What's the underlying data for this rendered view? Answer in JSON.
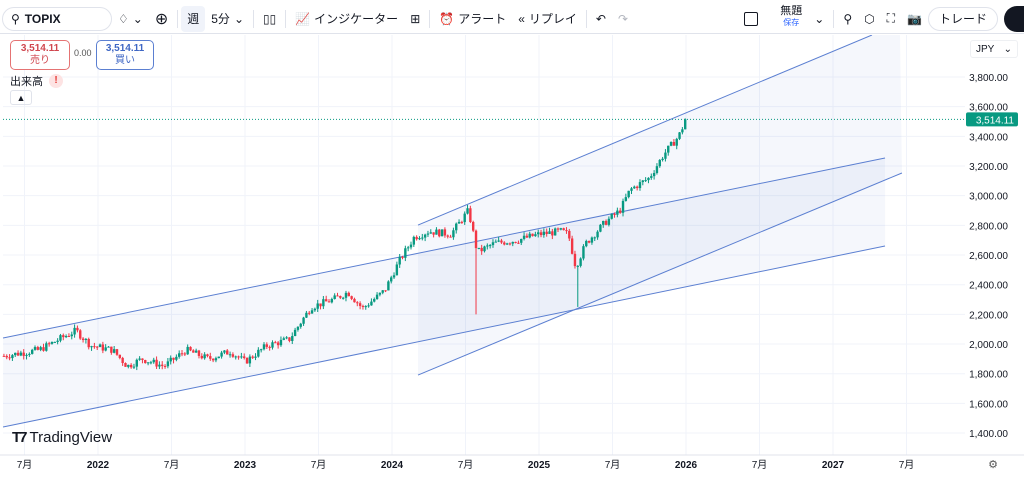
{
  "toolbar": {
    "symbol": "TOPIX",
    "interval_week": "週",
    "interval": "5分",
    "indicators": "インジケーター",
    "alert": "アラート",
    "replay": "リプレイ",
    "layout_name": "無題",
    "save": "保存",
    "trade": "トレード"
  },
  "quote": {
    "sell_price": "3,514.11",
    "sell_label": "売り",
    "spread": "0.00",
    "buy_price": "3,514.11",
    "buy_label": "買い",
    "volume_label": "出来高",
    "warning": "!"
  },
  "currency": "JPY",
  "brand": "TradingView",
  "current_price_label": "3,514.11",
  "colors": {
    "up": "#089981",
    "down": "#f23645",
    "drawing": "#5b7fd1",
    "price_tag": "#089981"
  },
  "chart_data": {
    "type": "candlestick",
    "yticks": [
      1400,
      1600,
      1800,
      2000,
      2200,
      2400,
      2600,
      2800,
      3000,
      3200,
      3400,
      3600,
      3800
    ],
    "ytick_labels": [
      "1,400.00",
      "1,600.00",
      "1,800.00",
      "2,000.00",
      "2,200.00",
      "2,400.00",
      "2,600.00",
      "2,800.00",
      "3,000.00",
      "3,200.00",
      "3,400.00",
      "3,600.00",
      "3,800.00"
    ],
    "xticks": [
      {
        "t": 2021.5,
        "label": "7月"
      },
      {
        "t": 2022,
        "label": "2022"
      },
      {
        "t": 2022.5,
        "label": "7月"
      },
      {
        "t": 2023,
        "label": "2023"
      },
      {
        "t": 2023.5,
        "label": "7月"
      },
      {
        "t": 2024,
        "label": "2024"
      },
      {
        "t": 2024.5,
        "label": "7月"
      },
      {
        "t": 2025,
        "label": "2025"
      },
      {
        "t": 2025.5,
        "label": "7月"
      },
      {
        "t": 2026,
        "label": "2026"
      },
      {
        "t": 2026.5,
        "label": "7月"
      },
      {
        "t": 2027,
        "label": "2027"
      },
      {
        "t": 2027.5,
        "label": "7月"
      }
    ],
    "xlim": [
      2021.35,
      2027.9
    ],
    "ylim": [
      1300,
      3950
    ],
    "keypoints": [
      [
        2021.36,
        1920
      ],
      [
        2021.6,
        1960
      ],
      [
        2021.75,
        2040
      ],
      [
        2021.85,
        2090
      ],
      [
        2021.95,
        1990
      ],
      [
        2022.1,
        1960
      ],
      [
        2022.2,
        1850
      ],
      [
        2022.3,
        1900
      ],
      [
        2022.45,
        1850
      ],
      [
        2022.6,
        1960
      ],
      [
        2022.75,
        1900
      ],
      [
        2022.9,
        1950
      ],
      [
        2023.0,
        1880
      ],
      [
        2023.15,
        1990
      ],
      [
        2023.3,
        2030
      ],
      [
        2023.45,
        2250
      ],
      [
        2023.6,
        2300
      ],
      [
        2023.7,
        2350
      ],
      [
        2023.8,
        2240
      ],
      [
        2023.95,
        2360
      ],
      [
        2024.05,
        2560
      ],
      [
        2024.15,
        2720
      ],
      [
        2024.25,
        2760
      ],
      [
        2024.4,
        2740
      ],
      [
        2024.52,
        2900
      ],
      [
        2024.58,
        2620
      ],
      [
        2024.7,
        2680
      ],
      [
        2024.85,
        2700
      ],
      [
        2025.0,
        2740
      ],
      [
        2025.15,
        2760
      ],
      [
        2025.2,
        2740
      ],
      [
        2025.25,
        2520
      ],
      [
        2025.32,
        2680
      ],
      [
        2025.45,
        2820
      ],
      [
        2025.55,
        2900
      ],
      [
        2025.62,
        3040
      ],
      [
        2025.75,
        3120
      ],
      [
        2025.85,
        3280
      ],
      [
        2025.95,
        3400
      ],
      [
        2026.0,
        3514
      ]
    ],
    "spikes": [
      {
        "t": 2024.58,
        "low": 2200
      },
      {
        "t": 2025.26,
        "low": 2250
      }
    ],
    "last": 3514.11,
    "drawings": [
      {
        "name": "long-channel-upper",
        "p1": [
          2021.354,
          2041
        ],
        "p2": [
          2027.354,
          3254
        ]
      },
      {
        "name": "long-channel-lower",
        "p1": [
          2021.354,
          1441
        ],
        "p2": [
          2027.354,
          2661
        ]
      },
      {
        "name": "steep-channel-upper",
        "p1": [
          2024.177,
          2802
        ],
        "p2": [
          2027.265,
          4083
        ]
      },
      {
        "name": "steep-channel-lower",
        "p1": [
          2024.177,
          1791
        ],
        "p2": [
          2027.469,
          3153
        ]
      }
    ]
  }
}
